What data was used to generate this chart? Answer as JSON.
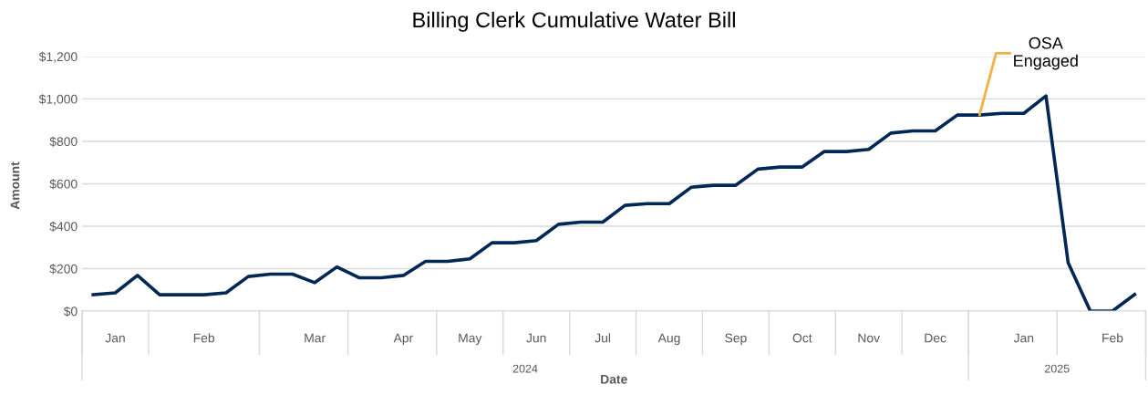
{
  "chart_data": {
    "type": "line",
    "title": "Billing Clerk Cumulative Water Bill",
    "xlabel": "Date",
    "ylabel": "Amount",
    "categories": [
      null,
      "Jan",
      null,
      null,
      null,
      "Feb",
      null,
      null,
      null,
      null,
      "Mar",
      null,
      null,
      null,
      "Apr",
      null,
      null,
      "May",
      null,
      null,
      "Jun",
      null,
      null,
      "Jul",
      null,
      null,
      "Aug",
      null,
      null,
      "Sep",
      null,
      null,
      "Oct",
      null,
      null,
      "Nov",
      null,
      null,
      "Dec",
      null,
      null,
      null,
      "Jan",
      null,
      null,
      null,
      "Feb",
      null
    ],
    "series": [
      {
        "color": "#002855",
        "values": [
          77,
          86,
          168,
          77,
          77,
          77,
          86,
          163,
          174,
          174,
          134,
          208,
          157,
          157,
          168,
          234,
          234,
          246,
          322,
          322,
          332,
          409,
          419,
          419,
          498,
          506,
          506,
          584,
          593,
          593,
          669,
          679,
          679,
          752,
          752,
          762,
          839,
          849,
          849,
          924,
          924,
          932,
          932,
          1014,
          228,
          0,
          0,
          78
        ]
      }
    ],
    "ylim": [
      0,
      1200
    ],
    "yticks": [
      {
        "value": 0,
        "label": "$0"
      },
      {
        "value": 200,
        "label": "$200"
      },
      {
        "value": 400,
        "label": "$400"
      },
      {
        "value": 600,
        "label": "$600"
      },
      {
        "value": 800,
        "label": "$800"
      },
      {
        "value": 1000,
        "label": "$1,000"
      },
      {
        "value": 1200,
        "label": "$1,200"
      }
    ],
    "grid": "y",
    "marker": "none",
    "line_style": "solid",
    "legend": false,
    "annotations": [
      {
        "text": "OSA\nEngaged",
        "y": 924
      },
      "2024",
      "2025"
    ]
  }
}
